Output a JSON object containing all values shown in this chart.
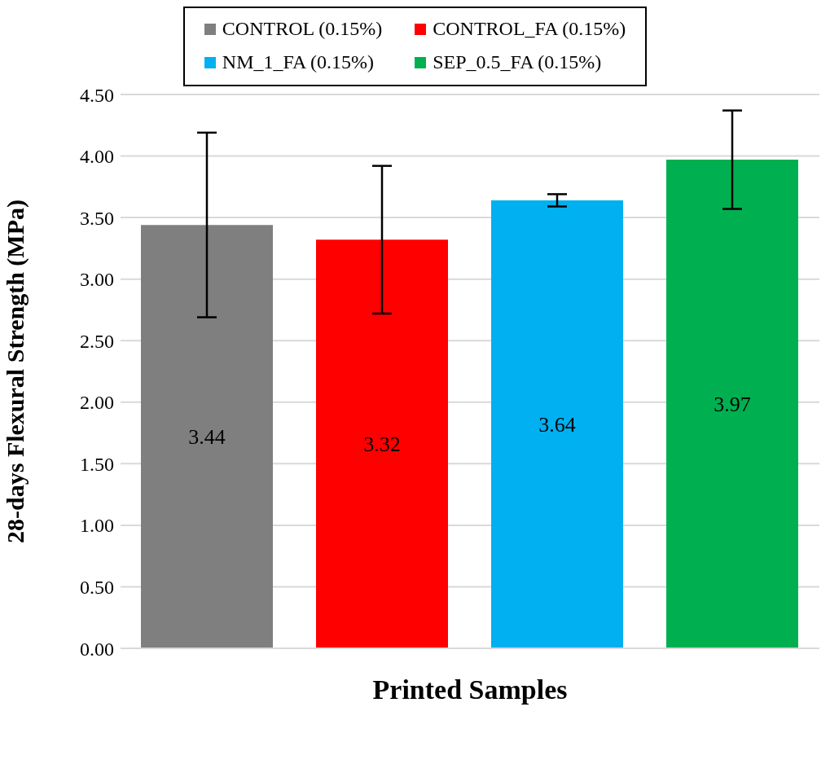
{
  "chart_data": {
    "type": "bar",
    "xlabel": "Printed Samples",
    "ylabel": "28-days Flexural Strength (MPa)",
    "categories": [
      null
    ],
    "series": [
      {
        "name": "CONTROL (0.15%)",
        "color": "#7f7f7f",
        "values": [
          3.44
        ],
        "errors": [
          0.75
        ]
      },
      {
        "name": "CONTROL_FA (0.15%)",
        "color": "#ff0000",
        "values": [
          3.32
        ],
        "errors": [
          0.6
        ]
      },
      {
        "name": "NM_1_FA (0.15%)",
        "color": "#00b0f0",
        "values": [
          3.64
        ],
        "errors": [
          0.05
        ]
      },
      {
        "name": "SEP_0.5_FA (0.15%)",
        "color": "#00b050",
        "values": [
          3.97
        ],
        "errors": [
          0.4
        ]
      }
    ],
    "ylim": [
      0,
      4.5
    ],
    "yticks": [
      {
        "value": 0,
        "label": "0.00"
      },
      {
        "value": 0.5,
        "label": "0.50"
      },
      {
        "value": 1,
        "label": "1.00"
      },
      {
        "value": 1.5,
        "label": "1.50"
      },
      {
        "value": 2,
        "label": "2.00"
      },
      {
        "value": 2.5,
        "label": "2.50"
      },
      {
        "value": 3,
        "label": "3.00"
      },
      {
        "value": 3.5,
        "label": "3.50"
      },
      {
        "value": 4,
        "label": "4.00"
      },
      {
        "value": 4.5,
        "label": "4.50"
      }
    ],
    "grid": "y",
    "legend": "top",
    "data_labels": true,
    "tick_labels": "y"
  }
}
